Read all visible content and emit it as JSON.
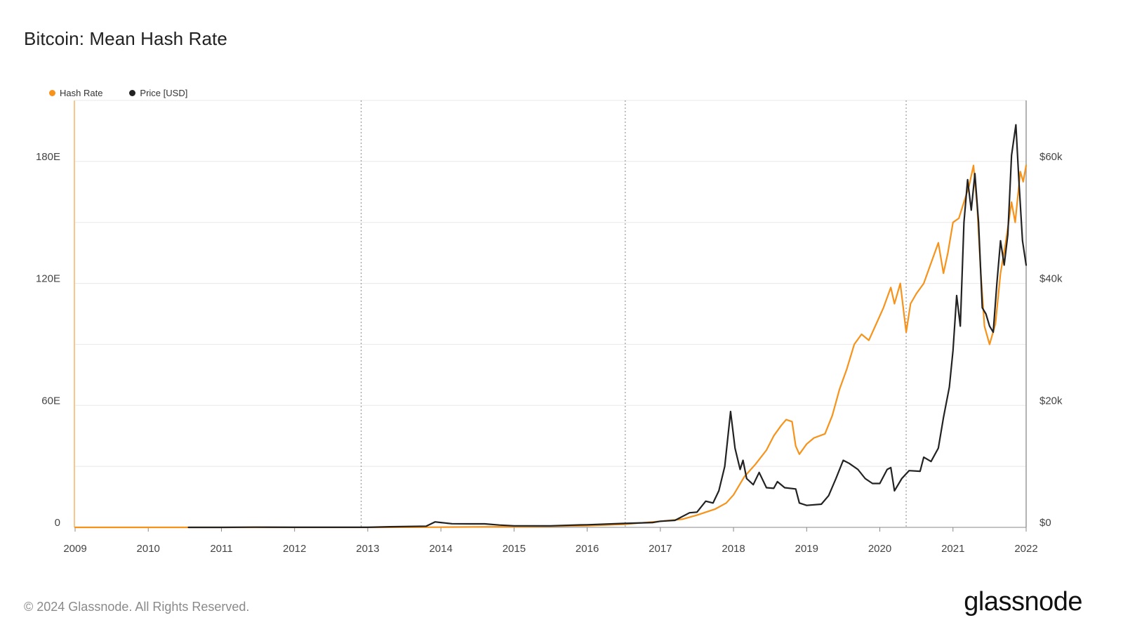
{
  "title": "Bitcoin: Mean Hash Rate",
  "legend": [
    {
      "label": "Hash Rate",
      "color": "#f7931a"
    },
    {
      "label": "Price [USD]",
      "color": "#222222"
    }
  ],
  "footer": {
    "copyright": "© 2024 Glassnode. All Rights Reserved.",
    "brand": "glassnode"
  },
  "chart_data": {
    "type": "line",
    "title": "Bitcoin: Mean Hash Rate",
    "xlabel": "",
    "ylabel": "",
    "xlim": [
      2009,
      2022
    ],
    "x_ticks": [
      "2009",
      "2010",
      "2011",
      "2012",
      "2013",
      "2014",
      "2015",
      "2016",
      "2017",
      "2018",
      "2019",
      "2020",
      "2021",
      "2022"
    ],
    "y_left": {
      "ylim": [
        0,
        210
      ],
      "ticks": [
        0,
        60,
        120,
        180
      ],
      "tick_labels": [
        "0",
        "60E",
        "120E",
        "180E"
      ]
    },
    "y_right": {
      "ylim": [
        0,
        70000
      ],
      "ticks": [
        0,
        20000,
        40000,
        60000
      ],
      "tick_labels": [
        "$0",
        "$20k",
        "$40k",
        "$60k"
      ]
    },
    "grid": true,
    "legend_position": "top-left",
    "halving_lines": [
      2012.91,
      2016.52,
      2020.36
    ],
    "series": [
      {
        "name": "Hash Rate",
        "axis": "left",
        "color": "#f7931a",
        "points": [
          [
            2009.0,
            0
          ],
          [
            2013.0,
            0
          ],
          [
            2014.0,
            0.1
          ],
          [
            2015.0,
            0.35
          ],
          [
            2016.0,
            0.8
          ],
          [
            2016.5,
            1.5
          ],
          [
            2017.0,
            3
          ],
          [
            2017.3,
            4
          ],
          [
            2017.5,
            6
          ],
          [
            2017.75,
            9
          ],
          [
            2017.9,
            12
          ],
          [
            2018.0,
            16
          ],
          [
            2018.15,
            25
          ],
          [
            2018.3,
            31
          ],
          [
            2018.45,
            38
          ],
          [
            2018.55,
            45
          ],
          [
            2018.65,
            50
          ],
          [
            2018.72,
            53
          ],
          [
            2018.8,
            52
          ],
          [
            2018.85,
            40
          ],
          [
            2018.9,
            36
          ],
          [
            2019.0,
            41
          ],
          [
            2019.1,
            44
          ],
          [
            2019.25,
            46
          ],
          [
            2019.35,
            55
          ],
          [
            2019.45,
            68
          ],
          [
            2019.55,
            78
          ],
          [
            2019.65,
            90
          ],
          [
            2019.75,
            95
          ],
          [
            2019.85,
            92
          ],
          [
            2019.95,
            100
          ],
          [
            2020.05,
            108
          ],
          [
            2020.15,
            118
          ],
          [
            2020.2,
            110
          ],
          [
            2020.28,
            120
          ],
          [
            2020.36,
            96
          ],
          [
            2020.42,
            110
          ],
          [
            2020.5,
            115
          ],
          [
            2020.6,
            120
          ],
          [
            2020.7,
            130
          ],
          [
            2020.8,
            140
          ],
          [
            2020.87,
            125
          ],
          [
            2020.93,
            135
          ],
          [
            2021.0,
            150
          ],
          [
            2021.08,
            152
          ],
          [
            2021.15,
            160
          ],
          [
            2021.22,
            168
          ],
          [
            2021.28,
            178
          ],
          [
            2021.33,
            158
          ],
          [
            2021.38,
            125
          ],
          [
            2021.43,
            99
          ],
          [
            2021.5,
            90
          ],
          [
            2021.58,
            100
          ],
          [
            2021.65,
            125
          ],
          [
            2021.72,
            140
          ],
          [
            2021.8,
            160
          ],
          [
            2021.85,
            150
          ],
          [
            2021.92,
            175
          ],
          [
            2021.96,
            170
          ],
          [
            2022.0,
            178
          ]
        ]
      },
      {
        "name": "Price [USD]",
        "axis": "right",
        "color": "#222222",
        "points": [
          [
            2010.55,
            0
          ],
          [
            2011.0,
            0.3
          ],
          [
            2011.45,
            30
          ],
          [
            2012.0,
            10
          ],
          [
            2013.0,
            13
          ],
          [
            2013.3,
            100
          ],
          [
            2013.8,
            200
          ],
          [
            2013.92,
            900
          ],
          [
            2014.0,
            800
          ],
          [
            2014.15,
            600
          ],
          [
            2014.4,
            580
          ],
          [
            2014.6,
            580
          ],
          [
            2014.8,
            380
          ],
          [
            2015.0,
            250
          ],
          [
            2015.5,
            250
          ],
          [
            2015.9,
            400
          ],
          [
            2016.0,
            430
          ],
          [
            2016.5,
            650
          ],
          [
            2016.9,
            800
          ],
          [
            2017.0,
            1000
          ],
          [
            2017.2,
            1150
          ],
          [
            2017.4,
            2400
          ],
          [
            2017.5,
            2500
          ],
          [
            2017.62,
            4300
          ],
          [
            2017.72,
            4000
          ],
          [
            2017.8,
            6000
          ],
          [
            2017.88,
            10000
          ],
          [
            2017.96,
            19000
          ],
          [
            2018.02,
            13000
          ],
          [
            2018.09,
            9500
          ],
          [
            2018.13,
            11000
          ],
          [
            2018.18,
            8000
          ],
          [
            2018.27,
            7000
          ],
          [
            2018.35,
            9000
          ],
          [
            2018.45,
            6500
          ],
          [
            2018.55,
            6400
          ],
          [
            2018.6,
            7500
          ],
          [
            2018.7,
            6500
          ],
          [
            2018.85,
            6300
          ],
          [
            2018.9,
            4000
          ],
          [
            2019.0,
            3600
          ],
          [
            2019.2,
            3800
          ],
          [
            2019.3,
            5200
          ],
          [
            2019.4,
            8000
          ],
          [
            2019.5,
            11000
          ],
          [
            2019.58,
            10500
          ],
          [
            2019.7,
            9500
          ],
          [
            2019.8,
            8000
          ],
          [
            2019.9,
            7200
          ],
          [
            2020.0,
            7200
          ],
          [
            2020.1,
            9500
          ],
          [
            2020.15,
            9800
          ],
          [
            2020.2,
            6000
          ],
          [
            2020.3,
            8000
          ],
          [
            2020.4,
            9300
          ],
          [
            2020.55,
            9200
          ],
          [
            2020.6,
            11500
          ],
          [
            2020.7,
            10800
          ],
          [
            2020.8,
            13000
          ],
          [
            2020.87,
            18000
          ],
          [
            2020.95,
            23000
          ],
          [
            2021.0,
            29000
          ],
          [
            2021.05,
            38000
          ],
          [
            2021.1,
            33000
          ],
          [
            2021.15,
            50000
          ],
          [
            2021.2,
            57000
          ],
          [
            2021.25,
            52000
          ],
          [
            2021.3,
            58000
          ],
          [
            2021.35,
            50000
          ],
          [
            2021.4,
            36000
          ],
          [
            2021.45,
            35000
          ],
          [
            2021.5,
            33000
          ],
          [
            2021.55,
            32000
          ],
          [
            2021.6,
            40000
          ],
          [
            2021.65,
            47000
          ],
          [
            2021.7,
            43000
          ],
          [
            2021.75,
            48000
          ],
          [
            2021.8,
            61000
          ],
          [
            2021.86,
            66000
          ],
          [
            2021.9,
            57000
          ],
          [
            2021.95,
            47000
          ],
          [
            2022.0,
            43000
          ]
        ]
      }
    ]
  }
}
